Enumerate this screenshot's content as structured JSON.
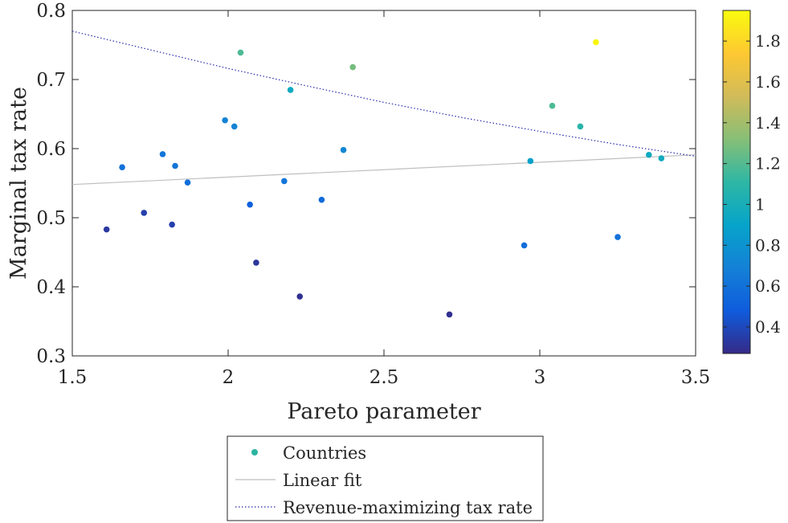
{
  "chart_data": {
    "type": "scatter",
    "title": "",
    "xlabel": "Pareto parameter",
    "ylabel": "Marginal tax rate",
    "xlim": [
      1.5,
      3.5
    ],
    "ylim": [
      0.3,
      0.8
    ],
    "xticks": [
      1.5,
      2,
      2.5,
      3,
      3.5
    ],
    "xtick_labels": [
      "1.5",
      "2",
      "2.5",
      "3",
      "3.5"
    ],
    "yticks": [
      0.3,
      0.4,
      0.5,
      0.6,
      0.7,
      0.8
    ],
    "ytick_labels": [
      "0.3",
      "0.4",
      "0.5",
      "0.6",
      "0.7",
      "0.8"
    ],
    "grid": false,
    "legend_position": "below",
    "colorbar": {
      "colormap": "parula",
      "range": [
        0.27,
        1.95
      ],
      "ticks": [
        0.4,
        0.6,
        0.8,
        1.0,
        1.2,
        1.4,
        1.6,
        1.8
      ],
      "tick_labels": [
        "0.4",
        "0.6",
        "0.8",
        "1",
        "1.2",
        "1.4",
        "1.6",
        "1.8"
      ]
    },
    "series": [
      {
        "name": "Countries",
        "kind": "scatter",
        "points": [
          {
            "x": 1.61,
            "y": 0.483,
            "c": 0.33
          },
          {
            "x": 1.66,
            "y": 0.573,
            "c": 0.6
          },
          {
            "x": 1.73,
            "y": 0.507,
            "c": 0.36
          },
          {
            "x": 1.79,
            "y": 0.592,
            "c": 0.63
          },
          {
            "x": 1.82,
            "y": 0.49,
            "c": 0.36
          },
          {
            "x": 1.83,
            "y": 0.575,
            "c": 0.62
          },
          {
            "x": 1.87,
            "y": 0.551,
            "c": 0.58
          },
          {
            "x": 1.99,
            "y": 0.641,
            "c": 0.7
          },
          {
            "x": 2.02,
            "y": 0.632,
            "c": 0.7
          },
          {
            "x": 2.04,
            "y": 0.739,
            "c": 1.18
          },
          {
            "x": 2.07,
            "y": 0.519,
            "c": 0.5
          },
          {
            "x": 2.09,
            "y": 0.435,
            "c": 0.32
          },
          {
            "x": 2.18,
            "y": 0.553,
            "c": 0.62
          },
          {
            "x": 2.2,
            "y": 0.685,
            "c": 0.95
          },
          {
            "x": 2.23,
            "y": 0.386,
            "c": 0.3
          },
          {
            "x": 2.3,
            "y": 0.526,
            "c": 0.56
          },
          {
            "x": 2.37,
            "y": 0.598,
            "c": 0.72
          },
          {
            "x": 2.4,
            "y": 0.718,
            "c": 1.28
          },
          {
            "x": 2.71,
            "y": 0.36,
            "c": 0.29
          },
          {
            "x": 2.95,
            "y": 0.46,
            "c": 0.58
          },
          {
            "x": 2.97,
            "y": 0.582,
            "c": 0.88
          },
          {
            "x": 3.04,
            "y": 0.662,
            "c": 1.18
          },
          {
            "x": 3.13,
            "y": 0.632,
            "c": 1.08
          },
          {
            "x": 3.18,
            "y": 0.754,
            "c": 1.93
          },
          {
            "x": 3.25,
            "y": 0.472,
            "c": 0.6
          },
          {
            "x": 3.35,
            "y": 0.591,
            "c": 0.95
          },
          {
            "x": 3.39,
            "y": 0.586,
            "c": 0.97
          }
        ]
      },
      {
        "name": "Linear fit",
        "kind": "line",
        "color": "#bfbfbf",
        "points": [
          {
            "x": 1.5,
            "y": 0.548
          },
          {
            "x": 3.5,
            "y": 0.591
          }
        ]
      },
      {
        "name": "Revenue-maximizing tax rate",
        "kind": "dotted-line",
        "color": "#2a2ab0",
        "points": [
          {
            "x": 1.5,
            "y": 0.77
          },
          {
            "x": 1.75,
            "y": 0.743
          },
          {
            "x": 2.0,
            "y": 0.716
          },
          {
            "x": 2.25,
            "y": 0.691
          },
          {
            "x": 2.5,
            "y": 0.667
          },
          {
            "x": 2.75,
            "y": 0.645
          },
          {
            "x": 3.0,
            "y": 0.625
          },
          {
            "x": 3.25,
            "y": 0.606
          },
          {
            "x": 3.5,
            "y": 0.589
          }
        ]
      }
    ]
  },
  "legend": {
    "items": [
      {
        "label": "Countries",
        "marker_color": "#2bb5a1"
      },
      {
        "label": "Linear fit"
      },
      {
        "label": "Revenue-maximizing tax rate"
      }
    ]
  }
}
